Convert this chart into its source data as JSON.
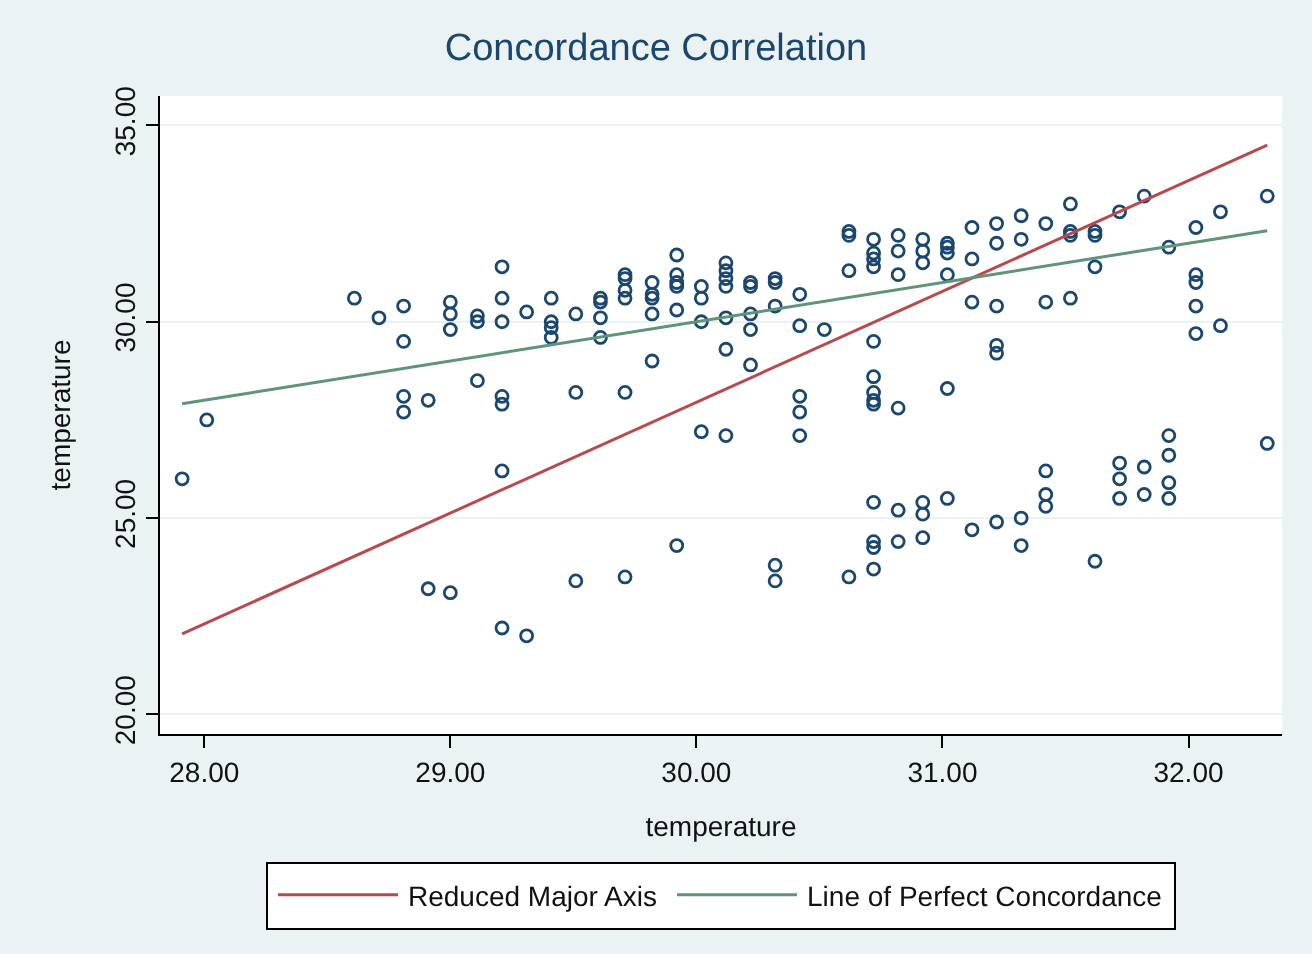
{
  "chart_data": {
    "type": "scatter",
    "title": "Concordance Correlation",
    "xlabel": "temperature",
    "ylabel": "temperature",
    "xlim": [
      27.82,
      32.38
    ],
    "ylim": [
      19.5,
      35.75
    ],
    "xticks": [
      {
        "value": 28,
        "label": "28.00"
      },
      {
        "value": 29,
        "label": "29.00"
      },
      {
        "value": 30,
        "label": "30.00"
      },
      {
        "value": 31,
        "label": "31.00"
      },
      {
        "value": 32,
        "label": "32.00"
      }
    ],
    "yticks": [
      {
        "value": 20,
        "label": "20.00"
      },
      {
        "value": 25,
        "label": "25.00"
      },
      {
        "value": 30,
        "label": "30.00"
      },
      {
        "value": 35,
        "label": "35.00"
      }
    ],
    "grid": "y",
    "legend": "bottom",
    "series": [
      {
        "marker": "circle",
        "color": "#1a476f",
        "x": [
          27.91,
          28.01,
          28.61,
          28.71,
          28.81,
          28.81,
          28.81,
          28.81,
          28.91,
          28.91,
          29.0,
          29.0,
          29.0,
          29.0,
          29.11,
          29.11,
          29.11,
          29.21,
          29.21,
          29.21,
          29.21,
          29.21,
          29.21,
          29.21,
          29.31,
          29.31,
          29.41,
          29.41,
          29.41,
          29.41,
          29.51,
          29.51,
          29.51,
          29.61,
          29.61,
          29.61,
          29.61,
          29.71,
          29.71,
          29.71,
          29.71,
          29.71,
          29.71,
          29.82,
          29.82,
          29.82,
          29.82,
          29.82,
          29.92,
          29.92,
          29.92,
          29.92,
          29.92,
          29.92,
          30.02,
          30.02,
          30.02,
          30.02,
          30.12,
          30.12,
          30.12,
          30.12,
          30.12,
          30.12,
          30.12,
          30.22,
          30.22,
          30.22,
          30.22,
          30.22,
          30.32,
          30.32,
          30.32,
          30.32,
          30.32,
          30.42,
          30.42,
          30.42,
          30.42,
          30.42,
          30.52,
          30.62,
          30.62,
          30.62,
          30.62,
          30.72,
          30.72,
          30.72,
          30.72,
          30.72,
          30.72,
          30.72,
          30.72,
          30.72,
          30.72,
          30.72,
          30.72,
          30.72,
          30.82,
          30.82,
          30.82,
          30.82,
          30.82,
          30.82,
          30.92,
          30.92,
          30.92,
          30.92,
          30.92,
          30.92,
          31.02,
          31.02,
          31.02,
          31.02,
          31.02,
          31.02,
          31.12,
          31.12,
          31.12,
          31.12,
          31.22,
          31.22,
          31.22,
          31.22,
          31.22,
          31.22,
          31.32,
          31.32,
          31.32,
          31.32,
          31.42,
          31.42,
          31.42,
          31.42,
          31.42,
          31.52,
          31.52,
          31.52,
          31.52,
          31.62,
          31.62,
          31.62,
          31.62,
          31.72,
          31.72,
          31.72,
          31.72,
          31.82,
          31.82,
          31.82,
          31.92,
          31.92,
          31.92,
          31.92,
          31.92,
          32.03,
          32.03,
          32.03,
          32.03,
          32.03,
          32.13,
          32.13,
          32.32,
          32.32
        ],
        "values": [
          26.0,
          27.5,
          30.6,
          30.1,
          30.4,
          29.5,
          28.1,
          27.7,
          28.0,
          23.2,
          30.5,
          30.2,
          29.8,
          23.1,
          30.15,
          30.0,
          28.5,
          31.4,
          30.6,
          30.0,
          28.1,
          27.9,
          26.2,
          22.2,
          30.25,
          22.0,
          30.6,
          30.0,
          29.85,
          29.6,
          30.2,
          28.2,
          23.4,
          30.6,
          30.5,
          30.1,
          29.6,
          31.2,
          31.1,
          30.8,
          30.6,
          28.2,
          23.5,
          31.0,
          30.7,
          30.6,
          30.2,
          29.0,
          31.7,
          31.2,
          31.0,
          30.9,
          30.3,
          24.3,
          30.9,
          30.6,
          30.0,
          27.2,
          31.5,
          31.3,
          31.1,
          30.9,
          30.1,
          29.3,
          27.1,
          31.0,
          30.9,
          30.2,
          29.8,
          28.9,
          31.1,
          31.0,
          30.4,
          23.8,
          23.4,
          30.7,
          29.9,
          28.1,
          27.7,
          27.1,
          29.8,
          32.3,
          32.2,
          31.3,
          23.5,
          32.1,
          31.75,
          31.6,
          31.4,
          29.5,
          28.6,
          28.2,
          28.0,
          27.9,
          25.4,
          24.4,
          24.25,
          23.7,
          32.2,
          31.8,
          31.2,
          27.8,
          25.2,
          24.4,
          32.1,
          31.8,
          31.5,
          25.4,
          25.1,
          24.5,
          32.0,
          31.9,
          31.75,
          31.2,
          28.3,
          25.5,
          32.4,
          31.6,
          30.5,
          24.7,
          32.5,
          32.0,
          30.4,
          29.4,
          29.2,
          24.9,
          32.7,
          32.1,
          25.0,
          24.3,
          32.5,
          30.5,
          26.2,
          25.6,
          25.3,
          33.0,
          32.3,
          32.2,
          30.6,
          32.3,
          32.2,
          31.4,
          23.9,
          32.8,
          26.4,
          26.0,
          25.5,
          33.2,
          26.3,
          25.6,
          31.9,
          27.1,
          26.6,
          25.9,
          25.5,
          32.4,
          31.2,
          31.0,
          30.4,
          29.7,
          32.8,
          29.9,
          33.2,
          26.9
        ]
      },
      {
        "type": "line",
        "name": "Reduced Major Axis",
        "color": "#b84a4e",
        "marker": "none",
        "line_style": "solid",
        "x": [
          27.91,
          32.32
        ],
        "values": [
          22.05,
          34.5
        ]
      },
      {
        "type": "line",
        "name": "Line of Perfect Concordance",
        "color": "#5e9479",
        "marker": "none",
        "line_style": "solid",
        "x": [
          27.91,
          32.32
        ],
        "values": [
          27.91,
          32.32
        ]
      }
    ]
  }
}
